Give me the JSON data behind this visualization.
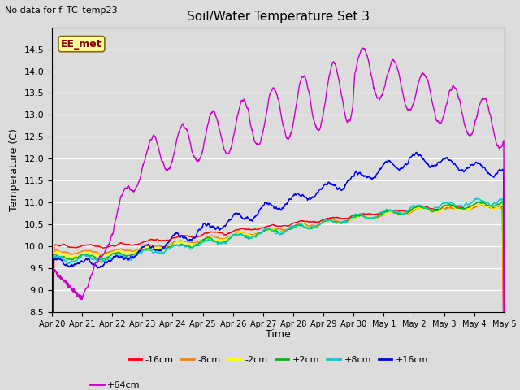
{
  "title": "Soil/Water Temperature Set 3",
  "subtitle": "No data for f_TC_temp23",
  "ylabel": "Temperature (C)",
  "xlabel": "Time",
  "ylim": [
    8.5,
    15.0
  ],
  "bg_color": "#dcdcdc",
  "plot_bg_color": "#dcdcdc",
  "annotation_text": "EE_met",
  "annotation_color": "#8B0000",
  "annotation_bg": "#ffff99",
  "series": [
    {
      "label": "-16cm",
      "color": "#ff0000"
    },
    {
      "label": "-8cm",
      "color": "#ff8000"
    },
    {
      "label": "-2cm",
      "color": "#ffff00"
    },
    {
      "label": "+2cm",
      "color": "#00bb00"
    },
    {
      "label": "+8cm",
      "color": "#00cccc"
    },
    {
      "label": "+16cm",
      "color": "#0000ff"
    },
    {
      "label": "+64cm",
      "color": "#cc00cc"
    }
  ],
  "xtick_labels": [
    "Apr 20",
    "Apr 21",
    "Apr 22",
    "Apr 23",
    "Apr 24",
    "Apr 25",
    "Apr 26",
    "Apr 27",
    "Apr 28",
    "Apr 29",
    "Apr 30",
    "May 1",
    "May 2",
    "May 3",
    "May 4",
    "May 5"
  ],
  "ytick_values": [
    8.5,
    9.0,
    9.5,
    10.0,
    10.5,
    11.0,
    11.5,
    12.0,
    12.5,
    13.0,
    13.5,
    14.0,
    14.5
  ],
  "linewidth": 1.0,
  "figsize": [
    6.4,
    4.8
  ],
  "dpi": 100
}
